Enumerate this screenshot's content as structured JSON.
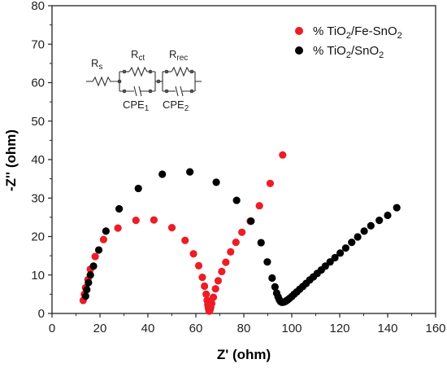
{
  "chart_data": {
    "type": "scatter",
    "xlabel": "Z' (ohm)",
    "ylabel": "-Z'' (ohm)",
    "xlim": [
      0,
      160
    ],
    "ylim": [
      0,
      80
    ],
    "x_ticks": [
      0,
      20,
      40,
      60,
      80,
      100,
      120,
      140,
      160
    ],
    "y_ticks": [
      0,
      10,
      20,
      30,
      40,
      50,
      60,
      70,
      80
    ],
    "x_tick_labels": [
      "0",
      "20",
      "40",
      "60",
      "80",
      "100",
      "120",
      "140",
      "160"
    ],
    "y_tick_labels": [
      "0",
      "10",
      "20",
      "30",
      "40",
      "50",
      "60",
      "70",
      "80"
    ],
    "grid": false,
    "legend_position": "top-right",
    "legend": [
      {
        "prefix": "% TiO",
        "sub1": "2",
        "mid": "/Fe-SnO",
        "sub2": "2"
      },
      {
        "prefix": "% TiO",
        "sub1": "2",
        "mid": "/SnO",
        "sub2": "2"
      }
    ],
    "series": [
      {
        "name": "% TiO2/Fe-SnO2",
        "color": "#ee1c24",
        "points": [
          [
            13.0,
            3.4
          ],
          [
            13.5,
            5.0
          ],
          [
            14.0,
            6.7
          ],
          [
            15.0,
            8.8
          ],
          [
            16.0,
            11.5
          ],
          [
            18.0,
            14.8
          ],
          [
            21.5,
            19.2
          ],
          [
            27.5,
            22.2
          ],
          [
            35.0,
            24.2
          ],
          [
            42.5,
            24.3
          ],
          [
            50.0,
            22.3
          ],
          [
            55.5,
            19.0
          ],
          [
            59.0,
            15.5
          ],
          [
            61.2,
            12.4
          ],
          [
            62.7,
            9.4
          ],
          [
            63.6,
            7.1
          ],
          [
            64.3,
            5.0
          ],
          [
            64.7,
            3.4
          ],
          [
            65.0,
            2.3
          ],
          [
            65.2,
            1.5
          ],
          [
            65.4,
            0.9
          ],
          [
            65.6,
            0.6
          ],
          [
            65.9,
            0.9
          ],
          [
            66.2,
            1.6
          ],
          [
            66.6,
            2.6
          ],
          [
            67.3,
            4.2
          ],
          [
            68.2,
            6.4
          ],
          [
            69.3,
            8.5
          ],
          [
            70.8,
            10.9
          ],
          [
            72.5,
            13.3
          ],
          [
            74.5,
            16.0
          ],
          [
            76.7,
            18.5
          ],
          [
            79.2,
            21.1
          ],
          [
            82.7,
            24.0
          ],
          [
            86.5,
            28.0
          ],
          [
            91.0,
            33.8
          ],
          [
            96.2,
            41.2
          ]
        ]
      },
      {
        "name": "% TiO2/SnO2",
        "color": "#000000",
        "points": [
          [
            14.0,
            4.5
          ],
          [
            14.5,
            6.2
          ],
          [
            15.2,
            8.0
          ],
          [
            16.0,
            10.0
          ],
          [
            17.3,
            12.3
          ],
          [
            19.5,
            16.5
          ],
          [
            22.5,
            21.4
          ],
          [
            28.0,
            27.2
          ],
          [
            36.0,
            32.5
          ],
          [
            46.0,
            36.2
          ],
          [
            57.5,
            36.8
          ],
          [
            68.5,
            34.1
          ],
          [
            77.0,
            29.4
          ],
          [
            83.0,
            24.0
          ],
          [
            87.2,
            18.4
          ],
          [
            89.8,
            13.4
          ],
          [
            91.8,
            9.2
          ],
          [
            93.0,
            6.9
          ],
          [
            93.7,
            5.3
          ],
          [
            94.3,
            4.3
          ],
          [
            94.8,
            3.6
          ],
          [
            95.3,
            3.1
          ],
          [
            95.8,
            2.9
          ],
          [
            96.3,
            2.9
          ],
          [
            96.9,
            3.0
          ],
          [
            97.5,
            3.2
          ],
          [
            98.2,
            3.5
          ],
          [
            99.0,
            3.9
          ],
          [
            100.0,
            4.4
          ],
          [
            101.0,
            5.0
          ],
          [
            102.1,
            5.6
          ],
          [
            103.3,
            6.3
          ],
          [
            104.6,
            7.0
          ],
          [
            106.0,
            7.8
          ],
          [
            107.5,
            8.7
          ],
          [
            109.0,
            9.5
          ],
          [
            110.6,
            10.4
          ],
          [
            112.3,
            11.3
          ],
          [
            114.0,
            12.3
          ],
          [
            116.0,
            13.4
          ],
          [
            118.0,
            14.5
          ],
          [
            120.2,
            15.7
          ],
          [
            122.5,
            17.0
          ],
          [
            125.0,
            18.5
          ],
          [
            127.5,
            19.9
          ],
          [
            130.2,
            21.4
          ],
          [
            133.0,
            22.8
          ],
          [
            136.5,
            24.2
          ],
          [
            140.0,
            25.5
          ],
          [
            143.8,
            27.5
          ]
        ]
      }
    ]
  },
  "circuit": {
    "rs_main": "R",
    "rs_sub": "s",
    "rct_main": "R",
    "rct_sub": "ct",
    "rrec_main": "R",
    "rrec_sub": "rec",
    "cpe1_main": "CPE",
    "cpe1_sub": "1",
    "cpe2_main": "CPE",
    "cpe2_sub": "2"
  }
}
